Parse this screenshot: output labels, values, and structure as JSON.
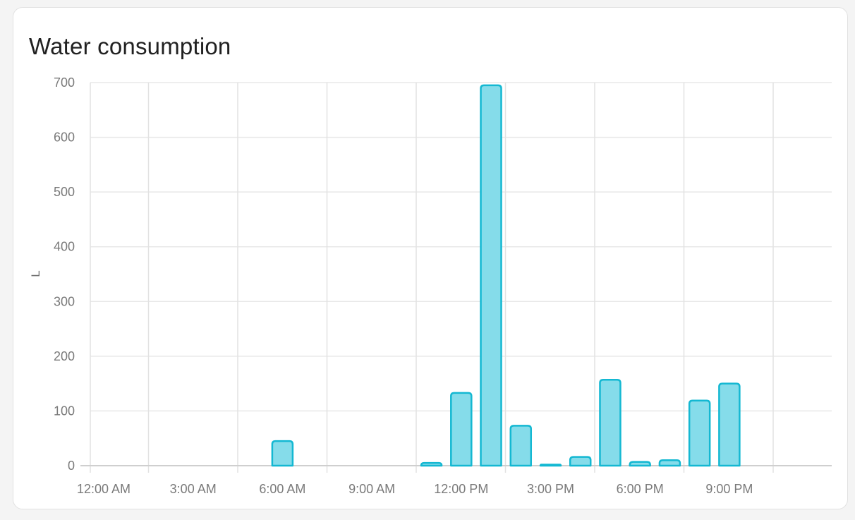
{
  "card": {
    "title": "Water consumption"
  },
  "chart_data": {
    "type": "bar",
    "title": "Water consumption",
    "xlabel": "",
    "ylabel": "L",
    "unit": "L",
    "ylim": [
      0,
      700
    ],
    "y_ticks": [
      0,
      100,
      200,
      300,
      400,
      500,
      600,
      700
    ],
    "x_ticks": [
      {
        "hour": 0,
        "label": "12:00 AM"
      },
      {
        "hour": 3,
        "label": "3:00 AM"
      },
      {
        "hour": 6,
        "label": "6:00 AM"
      },
      {
        "hour": 9,
        "label": "9:00 AM"
      },
      {
        "hour": 12,
        "label": "12:00 PM"
      },
      {
        "hour": 15,
        "label": "3:00 PM"
      },
      {
        "hour": 18,
        "label": "6:00 PM"
      },
      {
        "hour": 21,
        "label": "9:00 PM"
      }
    ],
    "grid": true,
    "legend": false,
    "series": [
      {
        "name": "Water consumption",
        "points": [
          {
            "hour": 0,
            "value": 0
          },
          {
            "hour": 1,
            "value": 0
          },
          {
            "hour": 2,
            "value": 0
          },
          {
            "hour": 3,
            "value": 0
          },
          {
            "hour": 4,
            "value": 0
          },
          {
            "hour": 5,
            "value": 0
          },
          {
            "hour": 6,
            "value": 45
          },
          {
            "hour": 7,
            "value": 0
          },
          {
            "hour": 8,
            "value": 0
          },
          {
            "hour": 9,
            "value": 0
          },
          {
            "hour": 10,
            "value": 0
          },
          {
            "hour": 11,
            "value": 5
          },
          {
            "hour": 12,
            "value": 133
          },
          {
            "hour": 13,
            "value": 695
          },
          {
            "hour": 14,
            "value": 73
          },
          {
            "hour": 15,
            "value": 2
          },
          {
            "hour": 16,
            "value": 16
          },
          {
            "hour": 17,
            "value": 157
          },
          {
            "hour": 18,
            "value": 7
          },
          {
            "hour": 19,
            "value": 10
          },
          {
            "hour": 20,
            "value": 119
          },
          {
            "hour": 21,
            "value": 150
          },
          {
            "hour": 22,
            "value": 0
          },
          {
            "hour": 23,
            "value": 0
          }
        ]
      }
    ],
    "colors": {
      "bar_fill": "#85dcea",
      "bar_stroke": "#14b8d2",
      "grid_horizontal": "#e8e8e8",
      "grid_vertical": "#e2e2e2",
      "axis_line": "#cfcfcf",
      "tick_text": "#7a7a7a",
      "title_text": "#212121"
    }
  }
}
